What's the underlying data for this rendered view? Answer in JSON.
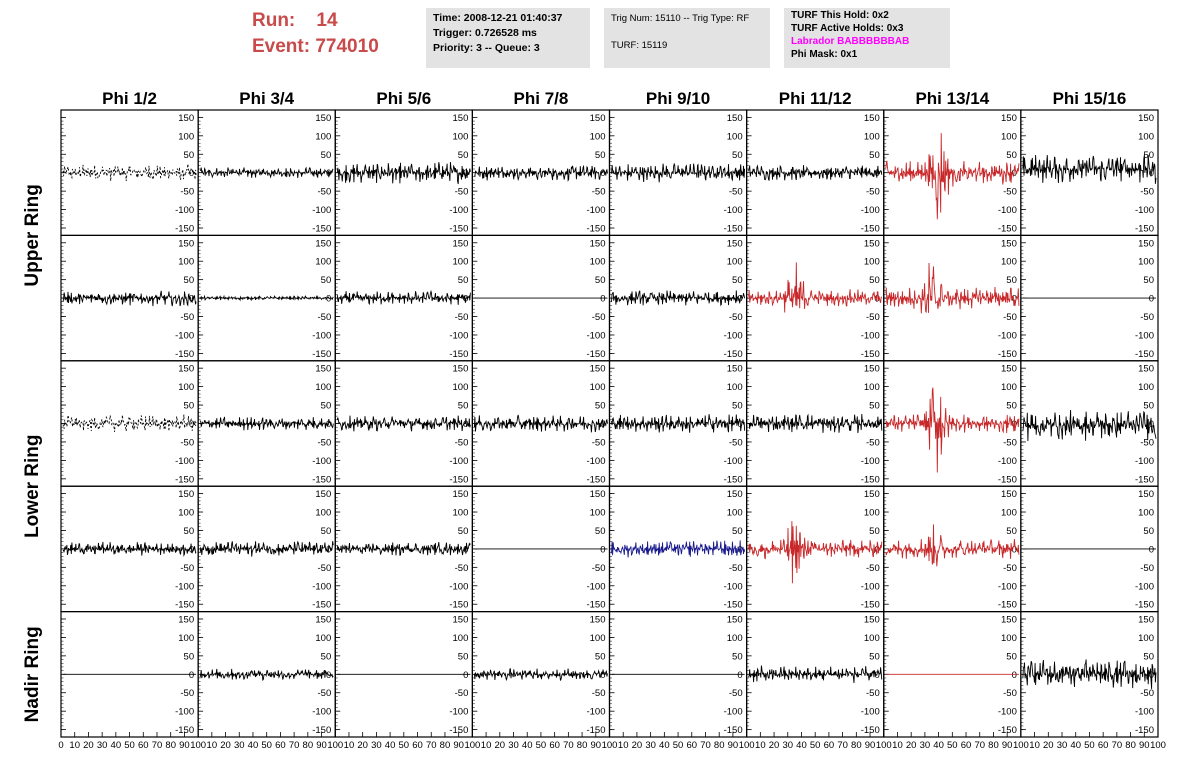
{
  "header": {
    "run_label": "Run:",
    "run_value": "14",
    "event_label": "Event:",
    "event_value": "774010"
  },
  "info1": {
    "time": "Time: 2008-12-21 01:40:37",
    "trigger": "Trigger: 0.726528 ms",
    "priority": "Priority: 3 -- Queue: 3"
  },
  "info2": {
    "trig": "Trig Num: 15110 -- Trig Type: RF",
    "turf": "TURF: 15119"
  },
  "info3": {
    "this_hold": "TURF This Hold: 0x2",
    "active_holds": "TURF Active Holds: 0x3",
    "labrador": "Labrador BABBBBBBAB",
    "phi_mask": "Phi Mask: 0x1"
  },
  "colors": {
    "red": "#c8282a",
    "blue": "#1a1a8c",
    "black": "#000000",
    "header_red": "#c94a4a",
    "magenta": "#ff00ff"
  },
  "chart_data": {
    "type": "line",
    "columns": [
      "Phi 1/2",
      "Phi 3/4",
      "Phi 5/6",
      "Phi 7/8",
      "Phi 9/10",
      "Phi 11/12",
      "Phi 13/14",
      "Phi 15/16"
    ],
    "row_groups": [
      "Upper Ring",
      "Lower Ring",
      "Nadir Ring"
    ],
    "ylim": [
      -170,
      170
    ],
    "yticks": [
      -150,
      -100,
      -50,
      0,
      50,
      100,
      150
    ],
    "xlim": [
      0,
      100
    ],
    "xtick_labels": [
      "0",
      "10",
      "20",
      "30",
      "40",
      "50",
      "60",
      "70",
      "80",
      "90",
      "100"
    ],
    "panels": [
      [
        {
          "c": "black",
          "a": 22,
          "dash": true
        },
        {
          "c": "black",
          "a": 14
        },
        {
          "c": "black",
          "a": 28
        },
        {
          "c": "black",
          "a": 20
        },
        {
          "c": "black",
          "a": 25
        },
        {
          "c": "black",
          "a": 20
        },
        {
          "c": "red",
          "a": 30,
          "burst": 110,
          "bc": 0.4
        },
        {
          "c": "black",
          "a": 40,
          "o": 10
        }
      ],
      [
        {
          "c": "black",
          "a": 20
        },
        {
          "c": "black",
          "a": 5
        },
        {
          "c": "black",
          "a": 18
        },
        {
          "c": "black",
          "a": 0
        },
        {
          "c": "black",
          "a": 20
        },
        {
          "c": "red",
          "a": 22,
          "burst": 75,
          "bc": 0.35
        },
        {
          "c": "red",
          "a": 30,
          "burst": 80,
          "bc": 0.35
        },
        {
          "c": "black",
          "a": 0
        }
      ],
      [
        {
          "c": "black",
          "a": 22,
          "dash": true
        },
        {
          "c": "black",
          "a": 18
        },
        {
          "c": "black",
          "a": 20
        },
        {
          "c": "black",
          "a": 22
        },
        {
          "c": "black",
          "a": 25
        },
        {
          "c": "black",
          "a": 25
        },
        {
          "c": "red",
          "a": 25,
          "burst": 140,
          "bc": 0.38
        },
        {
          "c": "black",
          "a": 40,
          "o": -5
        }
      ],
      [
        {
          "c": "black",
          "a": 18
        },
        {
          "c": "black",
          "a": 20
        },
        {
          "c": "black",
          "a": 18
        },
        {
          "c": "black",
          "a": 0
        },
        {
          "c": "blue",
          "a": 22
        },
        {
          "c": "red",
          "a": 25,
          "burst": 80,
          "bc": 0.35
        },
        {
          "c": "red",
          "a": 25,
          "burst": 40,
          "bc": 0.35
        },
        {
          "c": "black",
          "a": 0
        }
      ],
      [
        {
          "c": "black",
          "a": 0
        },
        {
          "c": "black",
          "a": 15
        },
        {
          "c": "black",
          "a": 0
        },
        {
          "c": "black",
          "a": 15
        },
        {
          "c": "black",
          "a": 0
        },
        {
          "c": "black",
          "a": 22
        },
        {
          "c": "red",
          "a": 0
        },
        {
          "c": "black",
          "a": 40
        }
      ]
    ]
  }
}
